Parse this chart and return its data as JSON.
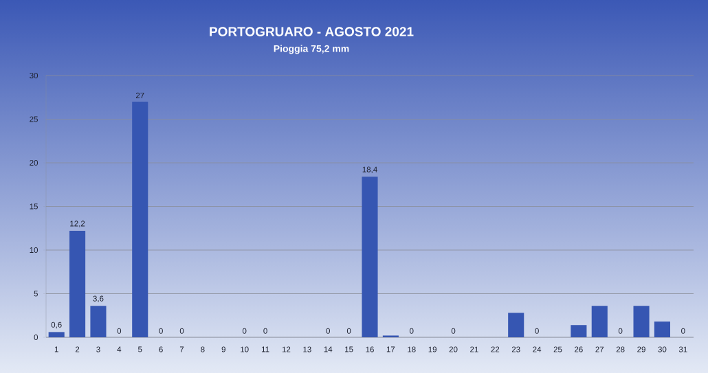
{
  "chart_data": {
    "type": "bar",
    "title": "PORTOGRUARO - AGOSTO 2021",
    "subtitle": "Pioggia 75,2 mm",
    "categories": [
      "1",
      "2",
      "3",
      "4",
      "5",
      "6",
      "7",
      "8",
      "9",
      "10",
      "11",
      "12",
      "13",
      "14",
      "15",
      "16",
      "17",
      "18",
      "19",
      "20",
      "21",
      "22",
      "23",
      "24",
      "25",
      "26",
      "27",
      "28",
      "29",
      "30",
      "31"
    ],
    "values": [
      0.6,
      12.2,
      3.6,
      0,
      27,
      0,
      0,
      null,
      null,
      0,
      0,
      null,
      null,
      0,
      0,
      18.4,
      0.2,
      0,
      null,
      0,
      null,
      null,
      2.8,
      0,
      null,
      1.4,
      3.6,
      0,
      3.6,
      1.8,
      0
    ],
    "value_labels": [
      "0,6",
      "12,2",
      "3,6",
      "0",
      "27",
      "0",
      "0",
      null,
      null,
      "0",
      "0",
      null,
      null,
      "0",
      "0",
      "18,4",
      null,
      "0",
      null,
      "0",
      null,
      null,
      null,
      "0",
      null,
      null,
      null,
      "0",
      null,
      null,
      "0"
    ],
    "color": "#3656b2",
    "ylim": [
      0,
      30
    ],
    "yticks": [
      0,
      5,
      10,
      15,
      20,
      25,
      30
    ],
    "grid": "y"
  }
}
